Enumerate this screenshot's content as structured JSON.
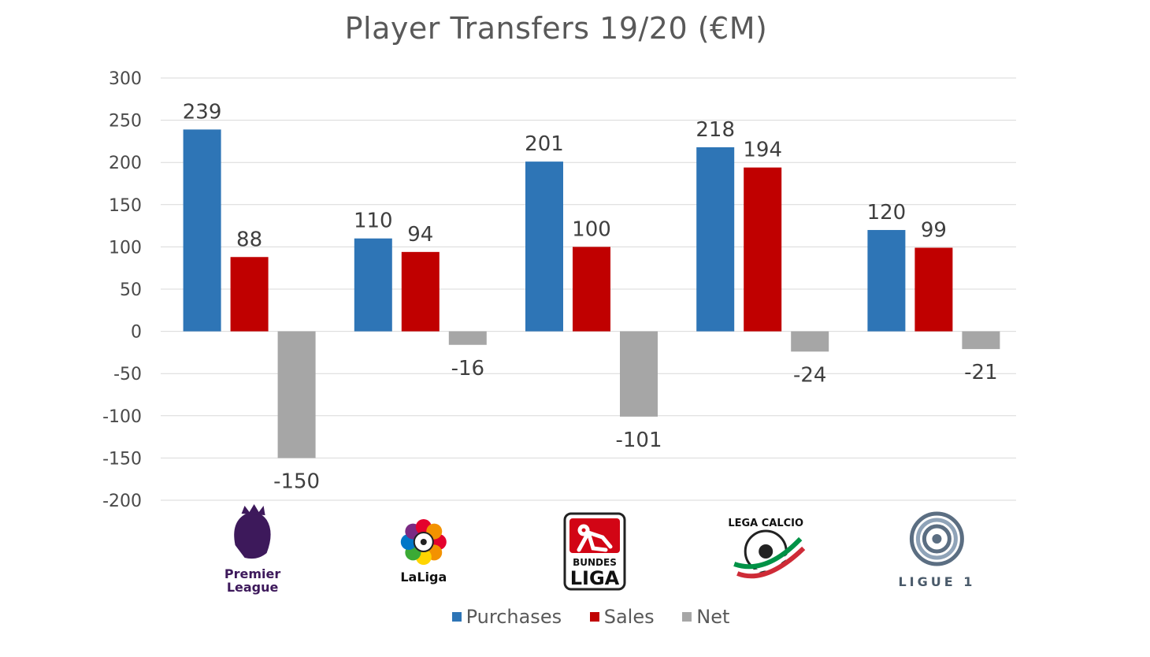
{
  "chart_data": {
    "type": "bar",
    "title": "Player Transfers 19/20 (€M)",
    "categories": [
      "Premier League",
      "LaLiga",
      "Bundesliga",
      "Lega Calcio",
      "Ligue 1"
    ],
    "series": [
      {
        "name": "Purchases",
        "values": [
          239,
          110,
          201,
          218,
          120
        ],
        "color": "#2E75B6"
      },
      {
        "name": "Sales",
        "values": [
          88,
          94,
          100,
          194,
          99
        ],
        "color": "#C00000"
      },
      {
        "name": "Net",
        "values": [
          -150,
          -16,
          -101,
          -24,
          -21
        ],
        "color": "#A6A6A6"
      }
    ],
    "ylim": [
      -200,
      300
    ],
    "yticks": [
      "300",
      "250",
      "200",
      "150",
      "100",
      "50",
      "0",
      "-50",
      "-100",
      "-150",
      "-200"
    ],
    "grid": true,
    "legend_position": "bottom",
    "xlabel": "",
    "ylabel": ""
  },
  "logos": [
    {
      "name": "premier-league",
      "lines": [
        "Premier",
        "League"
      ],
      "color": "#3D195B"
    },
    {
      "name": "laliga",
      "lines": [
        "LaLiga"
      ],
      "color": "#111111"
    },
    {
      "name": "bundesliga",
      "lines": [
        "BUNDES",
        "LIGA"
      ],
      "color": "#D20515"
    },
    {
      "name": "lega-calcio",
      "lines": [
        "LEGA CALCIO"
      ],
      "color": "#111111"
    },
    {
      "name": "ligue-1",
      "lines": [
        "LIGUE 1"
      ],
      "color": "#4A5A6A"
    }
  ]
}
